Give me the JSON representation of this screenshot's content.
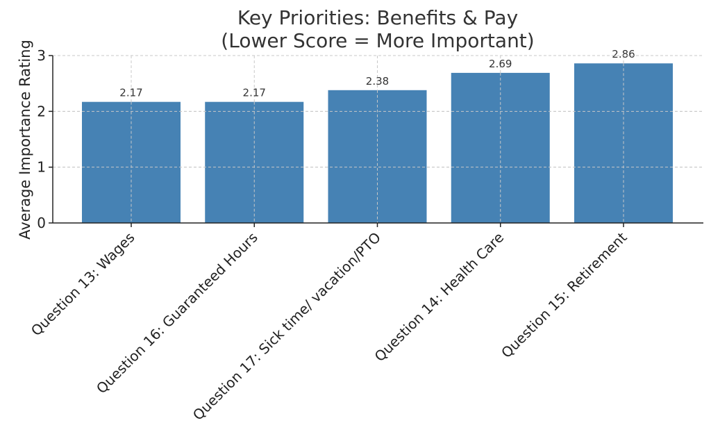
{
  "chart_data": {
    "type": "bar",
    "title_lines": [
      "Key Priorities: Benefits & Pay",
      "(Lower Score = More Important)"
    ],
    "xlabel": "",
    "ylabel": "Average Importance Rating",
    "categories": [
      "Question 13: Wages",
      "Question 16: Guaranteed Hours",
      "Question 17: Sick time/ vacation/PTO",
      "Question 14: Health Care",
      "Question 15: Retirement"
    ],
    "values": [
      2.17,
      2.17,
      2.38,
      2.69,
      2.86
    ],
    "data_labels": [
      "2.17",
      "2.17",
      "2.38",
      "2.69",
      "2.86"
    ],
    "ylim": [
      0,
      3
    ],
    "yticks": [
      "0",
      "1",
      "2",
      "3"
    ],
    "grid": true,
    "bar_color": "#4682b4"
  }
}
